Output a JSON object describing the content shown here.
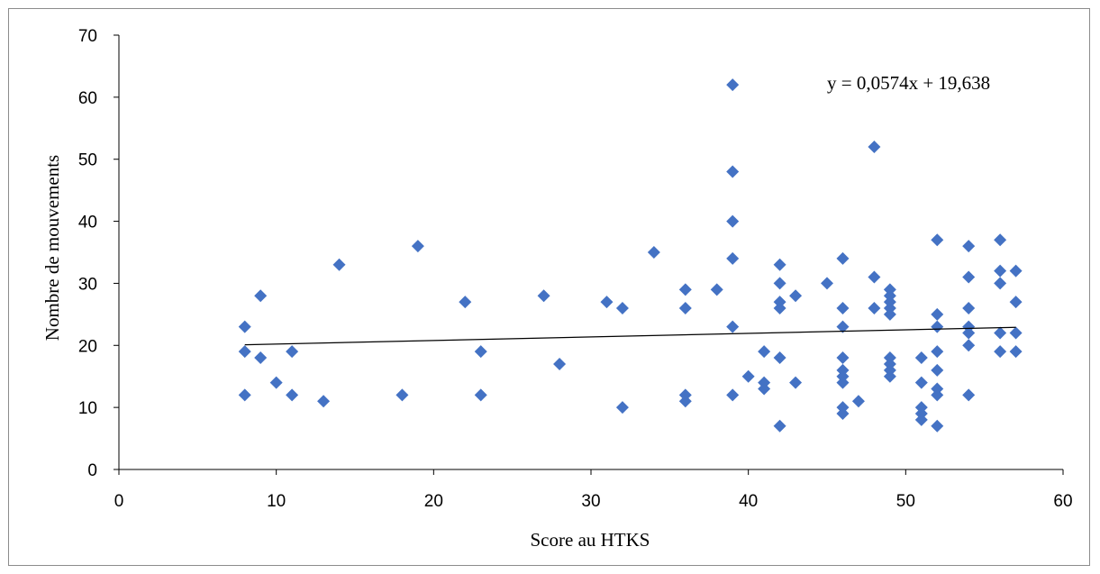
{
  "chart_data": {
    "type": "scatter",
    "xlabel": "Score au HTKS",
    "ylabel": "Nombre de mouvements",
    "xlim": [
      0,
      60
    ],
    "ylim": [
      0,
      70
    ],
    "x_ticks": [
      0,
      10,
      20,
      30,
      40,
      50,
      60
    ],
    "y_ticks": [
      0,
      10,
      20,
      30,
      40,
      50,
      60,
      70
    ],
    "grid": false,
    "marker": "diamond",
    "color": "#4472C4",
    "trendline": {
      "equation_label": "y = 0,0574x + 19,638",
      "slope": 0.0574,
      "intercept": 19.638,
      "x_range": [
        8,
        57
      ],
      "color": "#000000"
    },
    "points": [
      [
        8,
        23
      ],
      [
        8,
        19
      ],
      [
        8,
        12
      ],
      [
        9,
        28
      ],
      [
        9,
        18
      ],
      [
        10,
        14
      ],
      [
        11,
        19
      ],
      [
        11,
        12
      ],
      [
        13,
        11
      ],
      [
        14,
        33
      ],
      [
        18,
        12
      ],
      [
        19,
        36
      ],
      [
        22,
        27
      ],
      [
        23,
        19
      ],
      [
        23,
        12
      ],
      [
        27,
        28
      ],
      [
        28,
        17
      ],
      [
        31,
        27
      ],
      [
        32,
        26
      ],
      [
        32,
        10
      ],
      [
        34,
        35
      ],
      [
        36,
        29
      ],
      [
        36,
        26
      ],
      [
        36,
        12
      ],
      [
        36,
        11
      ],
      [
        38,
        29
      ],
      [
        39,
        62
      ],
      [
        39,
        48
      ],
      [
        39,
        40
      ],
      [
        39,
        34
      ],
      [
        39,
        23
      ],
      [
        39,
        12
      ],
      [
        40,
        15
      ],
      [
        41,
        19
      ],
      [
        41,
        14
      ],
      [
        41,
        13
      ],
      [
        42,
        33
      ],
      [
        42,
        30
      ],
      [
        42,
        27
      ],
      [
        42,
        26
      ],
      [
        42,
        18
      ],
      [
        42,
        7
      ],
      [
        43,
        28
      ],
      [
        43,
        14
      ],
      [
        45,
        30
      ],
      [
        46,
        34
      ],
      [
        46,
        26
      ],
      [
        46,
        23
      ],
      [
        46,
        18
      ],
      [
        46,
        16
      ],
      [
        46,
        15
      ],
      [
        46,
        14
      ],
      [
        46,
        10
      ],
      [
        46,
        9
      ],
      [
        47,
        11
      ],
      [
        48,
        52
      ],
      [
        48,
        31
      ],
      [
        48,
        26
      ],
      [
        49,
        29
      ],
      [
        49,
        28
      ],
      [
        49,
        27
      ],
      [
        49,
        26
      ],
      [
        49,
        25
      ],
      [
        49,
        18
      ],
      [
        49,
        17
      ],
      [
        49,
        16
      ],
      [
        49,
        15
      ],
      [
        51,
        18
      ],
      [
        51,
        14
      ],
      [
        51,
        10
      ],
      [
        51,
        9
      ],
      [
        51,
        8
      ],
      [
        52,
        37
      ],
      [
        52,
        25
      ],
      [
        52,
        23
      ],
      [
        52,
        19
      ],
      [
        52,
        16
      ],
      [
        52,
        13
      ],
      [
        52,
        12
      ],
      [
        52,
        7
      ],
      [
        54,
        36
      ],
      [
        54,
        31
      ],
      [
        54,
        26
      ],
      [
        54,
        23
      ],
      [
        54,
        22
      ],
      [
        54,
        20
      ],
      [
        54,
        12
      ],
      [
        56,
        37
      ],
      [
        56,
        32
      ],
      [
        56,
        30
      ],
      [
        56,
        22
      ],
      [
        56,
        19
      ],
      [
        57,
        32
      ],
      [
        57,
        27
      ],
      [
        57,
        22
      ],
      [
        57,
        19
      ]
    ]
  }
}
